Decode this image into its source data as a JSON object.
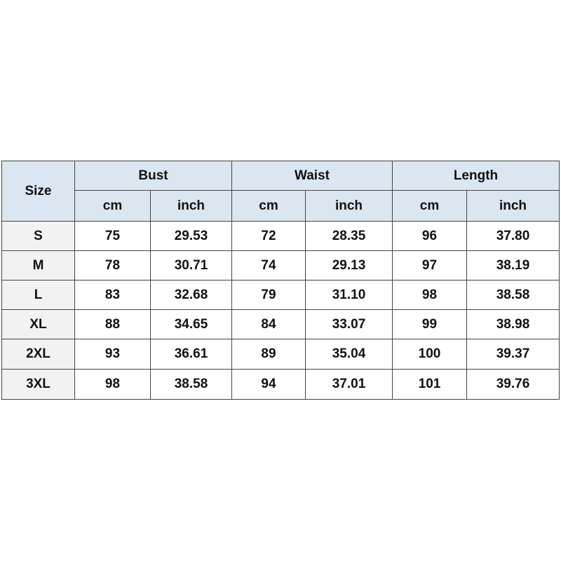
{
  "table": {
    "size_label": "Size",
    "groups": [
      "Bust",
      "Waist",
      "Length"
    ],
    "units": [
      "cm",
      "inch",
      "cm",
      "inch",
      "cm",
      "inch"
    ],
    "rows": [
      [
        "S",
        "75",
        "29.53",
        "72",
        "28.35",
        "96",
        "37.80"
      ],
      [
        "M",
        "78",
        "30.71",
        "74",
        "29.13",
        "97",
        "38.19"
      ],
      [
        "L",
        "83",
        "32.68",
        "79",
        "31.10",
        "98",
        "38.58"
      ],
      [
        "XL",
        "88",
        "34.65",
        "84",
        "33.07",
        "99",
        "38.98"
      ],
      [
        "2XL",
        "93",
        "36.61",
        "89",
        "35.04",
        "100",
        "39.37"
      ],
      [
        "3XL",
        "98",
        "38.58",
        "94",
        "37.01",
        "101",
        "39.76"
      ]
    ],
    "colors": {
      "header_bg": "#dce6f1",
      "size_col_bg": "#f2f2f2",
      "border": "#444444"
    }
  }
}
